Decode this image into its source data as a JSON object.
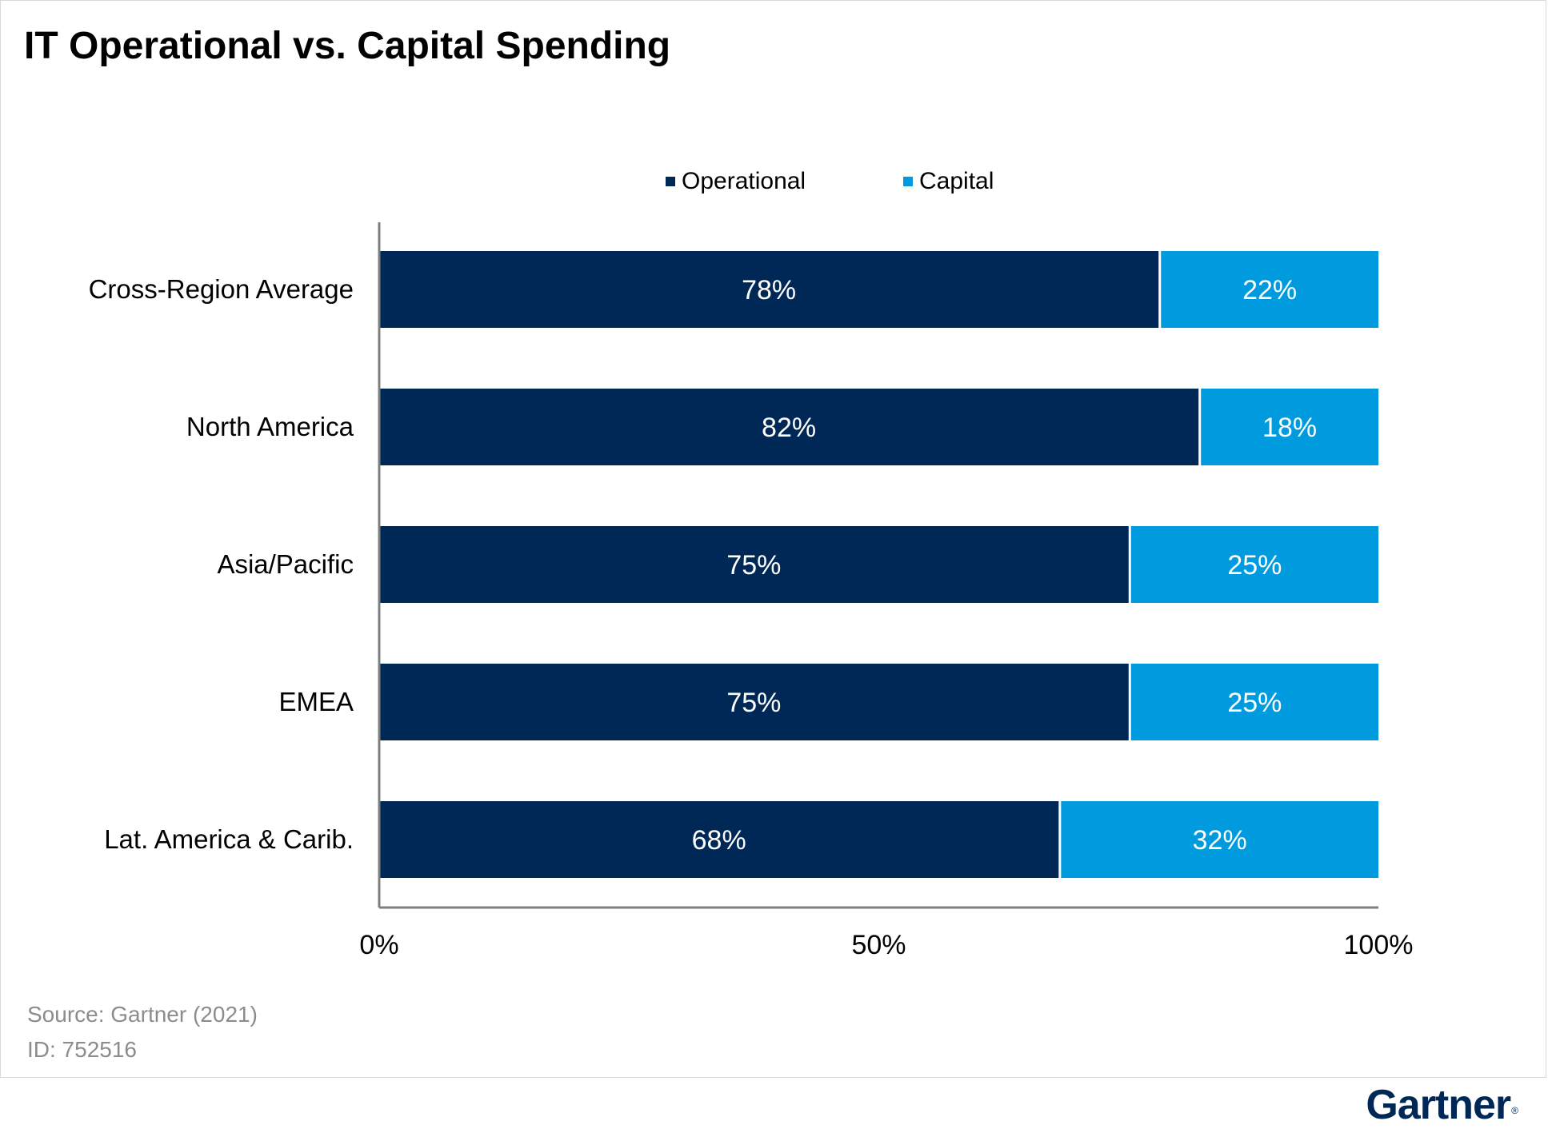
{
  "title": "IT Operational vs. Capital Spending",
  "source_lines": [
    "Source: Gartner (2021)",
    "ID: 752516"
  ],
  "logo": {
    "text": "Gartner",
    "mark": "®"
  },
  "colors": {
    "operational": "#002856",
    "capital": "#009bde",
    "axis": "#7f7f7f",
    "label_light": "#ffffff"
  },
  "chart_data": {
    "type": "bar",
    "orientation": "horizontal",
    "stacked": true,
    "title": "IT Operational vs. Capital Spending",
    "categories": [
      "Cross-Region Average",
      "North America",
      "Asia/Pacific",
      "EMEA",
      "Lat. America & Carib."
    ],
    "series": [
      {
        "name": "Operational",
        "values": [
          78,
          82,
          75,
          75,
          68
        ],
        "labels": [
          "78%",
          "82%",
          "75%",
          "75%",
          "68%"
        ]
      },
      {
        "name": "Capital",
        "values": [
          22,
          18,
          25,
          25,
          32
        ],
        "labels": [
          "22%",
          "18%",
          "25%",
          "25%",
          "32%"
        ]
      }
    ],
    "xlim": [
      0,
      100
    ],
    "x_ticks": [
      0,
      50,
      100
    ],
    "x_tick_labels": [
      "0%",
      "50%",
      "100%"
    ],
    "legend_position": "top",
    "grid": false
  }
}
